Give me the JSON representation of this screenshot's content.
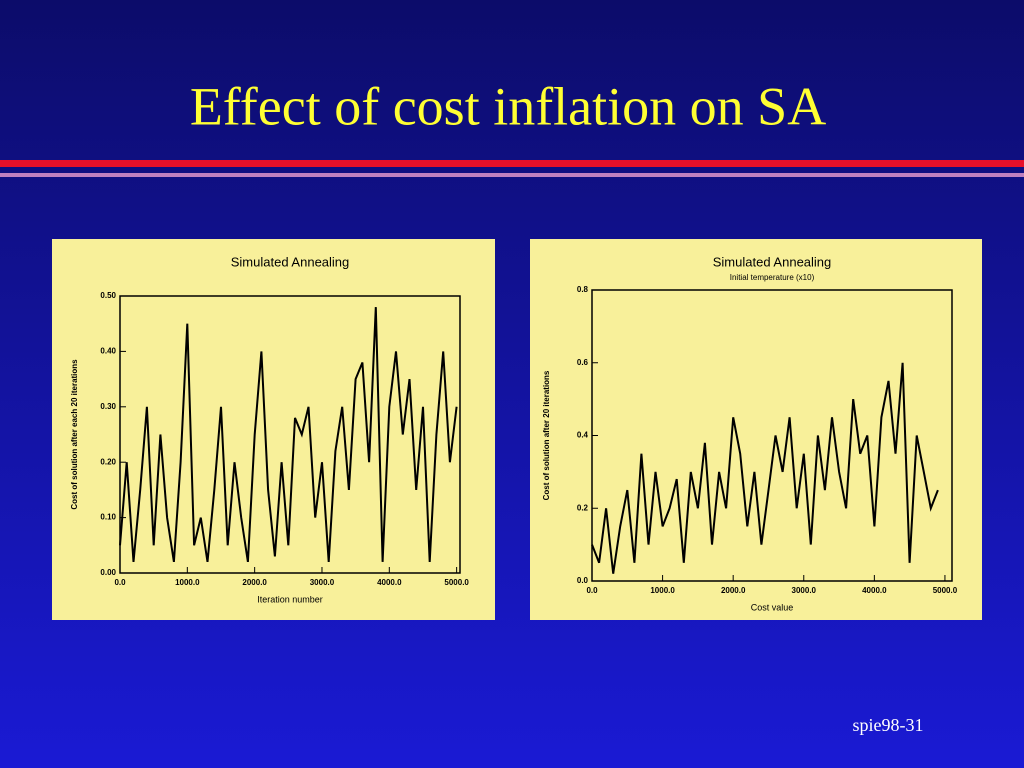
{
  "title": "Effect of cost inflation on SA",
  "footer": "spie98-31",
  "chart_data": [
    {
      "type": "line",
      "title": "Simulated Annealing",
      "xlabel": "Iteration number",
      "ylabel": "Cost of solution after each 20 iterations",
      "color": "#000000",
      "x": [
        0,
        100,
        200,
        300,
        400,
        500,
        600,
        700,
        800,
        900,
        1000,
        1100,
        1200,
        1300,
        1400,
        1500,
        1600,
        1700,
        1800,
        1900,
        2000,
        2100,
        2200,
        2300,
        2400,
        2500,
        2600,
        2700,
        2800,
        2900,
        3000,
        3100,
        3200,
        3300,
        3400,
        3500,
        3600,
        3700,
        3800,
        3900,
        4000,
        4100,
        4200,
        4300,
        4400,
        4500,
        4600,
        4700,
        4800,
        4900,
        5000
      ],
      "values": [
        0.05,
        0.2,
        0.02,
        0.15,
        0.3,
        0.05,
        0.25,
        0.1,
        0.02,
        0.2,
        0.45,
        0.05,
        0.1,
        0.02,
        0.15,
        0.3,
        0.05,
        0.2,
        0.1,
        0.02,
        0.25,
        0.4,
        0.15,
        0.03,
        0.2,
        0.05,
        0.28,
        0.25,
        0.3,
        0.1,
        0.2,
        0.02,
        0.22,
        0.3,
        0.15,
        0.35,
        0.38,
        0.2,
        0.48,
        0.02,
        0.3,
        0.4,
        0.25,
        0.35,
        0.15,
        0.3,
        0.02,
        0.25,
        0.4,
        0.2,
        0.3
      ],
      "xlim": [
        0,
        5050
      ],
      "ylim": [
        0,
        0.5
      ],
      "xticks": [
        {
          "value": 0,
          "label": "0.0"
        },
        {
          "value": 1000,
          "label": "1000.0"
        },
        {
          "value": 2000,
          "label": "2000.0"
        },
        {
          "value": 3000,
          "label": "3000.0"
        },
        {
          "value": 4000,
          "label": "4000.0"
        },
        {
          "value": 5000,
          "label": "5000.0"
        }
      ],
      "yticks": [
        {
          "value": 0,
          "label": "0.00"
        },
        {
          "value": 0.1,
          "label": "0.10"
        },
        {
          "value": 0.2,
          "label": "0.20"
        },
        {
          "value": 0.3,
          "label": "0.30"
        },
        {
          "value": 0.4,
          "label": "0.40"
        },
        {
          "value": 0.5,
          "label": "0.50"
        }
      ]
    },
    {
      "type": "line",
      "title": "Simulated Annealing",
      "subtitle": "Initial temperature (x10)",
      "xlabel": "Cost value",
      "ylabel": "Cost of solution after 20 iterations",
      "color": "#000000",
      "x": [
        0,
        100,
        200,
        300,
        400,
        500,
        600,
        700,
        800,
        900,
        1000,
        1100,
        1200,
        1300,
        1400,
        1500,
        1600,
        1700,
        1800,
        1900,
        2000,
        2100,
        2200,
        2300,
        2400,
        2500,
        2600,
        2700,
        2800,
        2900,
        3000,
        3100,
        3200,
        3300,
        3400,
        3500,
        3600,
        3700,
        3800,
        3900,
        4000,
        4100,
        4200,
        4300,
        4400,
        4500,
        4600,
        4700,
        4800,
        4900
      ],
      "values": [
        0.1,
        0.05,
        0.2,
        0.02,
        0.15,
        0.25,
        0.05,
        0.35,
        0.1,
        0.3,
        0.15,
        0.2,
        0.28,
        0.05,
        0.3,
        0.2,
        0.38,
        0.1,
        0.3,
        0.2,
        0.45,
        0.35,
        0.15,
        0.3,
        0.1,
        0.25,
        0.4,
        0.3,
        0.45,
        0.2,
        0.35,
        0.1,
        0.4,
        0.25,
        0.45,
        0.3,
        0.2,
        0.5,
        0.35,
        0.4,
        0.15,
        0.45,
        0.55,
        0.35,
        0.6,
        0.05,
        0.4,
        0.3,
        0.2,
        0.25
      ],
      "xlim": [
        0,
        5100
      ],
      "ylim": [
        0,
        0.8
      ],
      "xticks": [
        {
          "value": 0,
          "label": "0.0"
        },
        {
          "value": 1000,
          "label": "1000.0"
        },
        {
          "value": 2000,
          "label": "2000.0"
        },
        {
          "value": 3000,
          "label": "3000.0"
        },
        {
          "value": 4000,
          "label": "4000.0"
        },
        {
          "value": 5000,
          "label": "5000.0"
        }
      ],
      "yticks": [
        {
          "value": 0,
          "label": "0.0"
        },
        {
          "value": 0.2,
          "label": "0.2"
        },
        {
          "value": 0.4,
          "label": "0.4"
        },
        {
          "value": 0.6,
          "label": "0.6"
        },
        {
          "value": 0.8,
          "label": "0.8"
        }
      ]
    }
  ]
}
